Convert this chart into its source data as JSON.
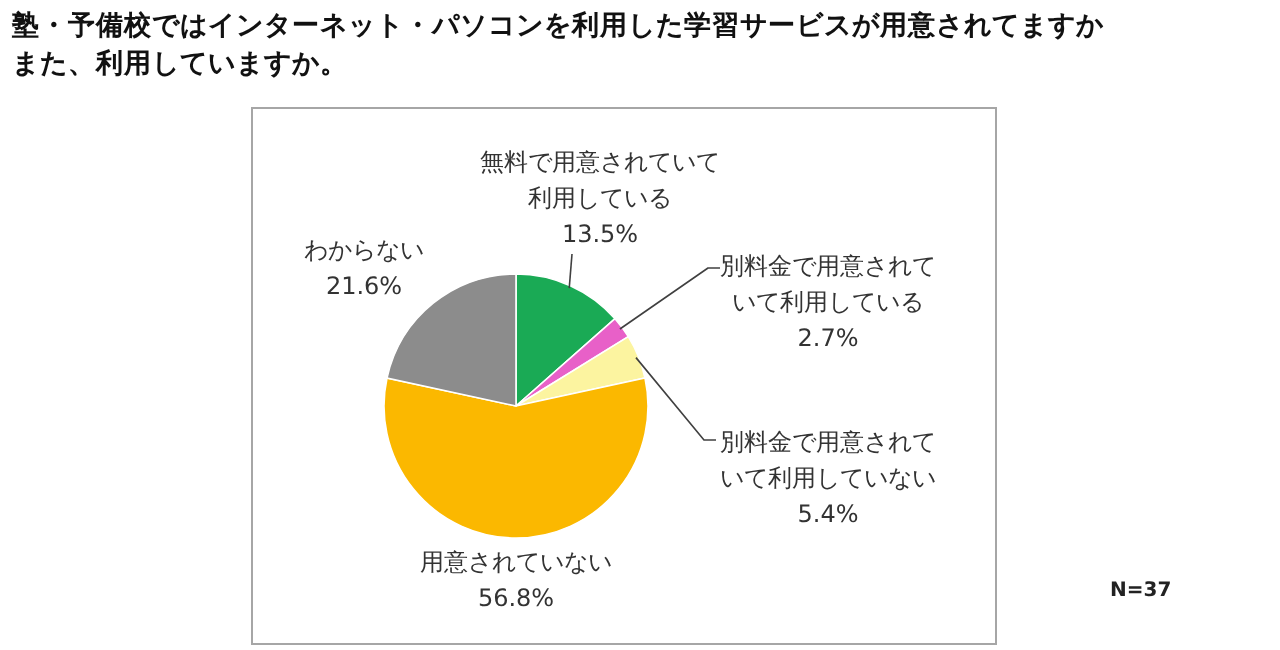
{
  "chart_data": {
    "type": "pie",
    "title": "塾・予備校ではインターネット・パソコンを利用した学習サービスが用意されてますかまた、利用していますか。",
    "categories": [
      "無料で用意されていて利用している",
      "別料金で用意されていて利用している",
      "別料金で用意されていて利用していない",
      "用意されていない",
      "わからない"
    ],
    "values": [
      13.5,
      2.7,
      5.4,
      56.8,
      21.6
    ],
    "value_labels": [
      "13.5%",
      "2.7%",
      "5.4%",
      "56.8%",
      "21.6%"
    ],
    "colors": [
      "#1aaa55",
      "#e860c8",
      "#fcf4a0",
      "#fbb800",
      "#8c8c8c"
    ],
    "annotations": [
      "N=37"
    ]
  }
}
